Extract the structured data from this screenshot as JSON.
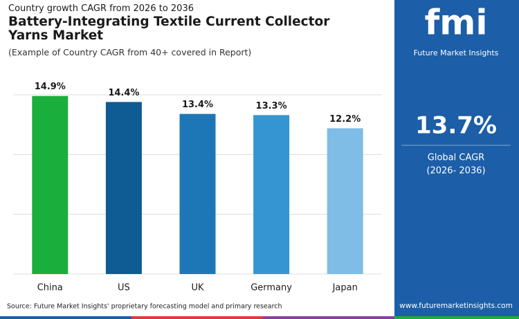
{
  "header": {
    "subtitle": "Country growth CAGR from 2026 to 2036",
    "title": "Battery-Integrating Textile Current Collector Yarns Market",
    "note": "(Example of Country CAGR from 40+ covered in Report)"
  },
  "chart_data": {
    "type": "bar",
    "categories": [
      "China",
      "US",
      "UK",
      "Germany",
      "Japan"
    ],
    "values": [
      14.9,
      14.4,
      13.4,
      13.3,
      12.2
    ],
    "value_labels": [
      "14.9%",
      "14.4%",
      "13.4%",
      "13.3%",
      "12.2%"
    ],
    "colors": [
      "#1aae3c",
      "#0f5b93",
      "#1d77b7",
      "#3595d3",
      "#7fbce6"
    ],
    "ylim": [
      0,
      15
    ],
    "yticks": [
      0,
      5,
      10,
      15
    ],
    "grid": true
  },
  "source": "Source: Future Market Insights' proprietary forecasting model and primary research",
  "panel": {
    "value": "13.7%",
    "label": "Global CAGR",
    "period": "(2026- 2036)",
    "logo": "fmi",
    "brand": "Future Market Insights",
    "url": "www.futuremarketinsights.com"
  }
}
